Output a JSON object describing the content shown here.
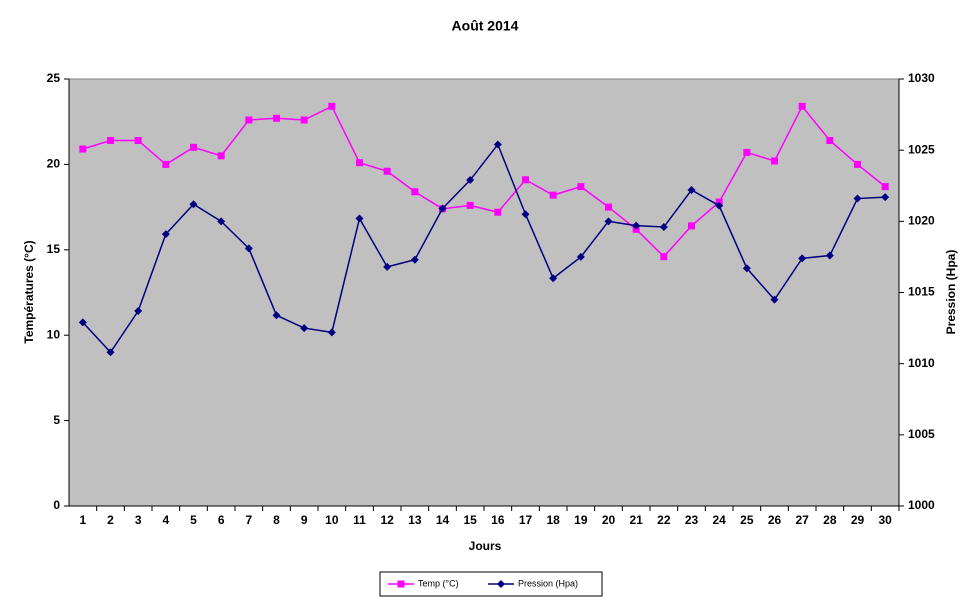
{
  "chart_data": {
    "type": "line",
    "title": "Août 2014",
    "x_label": "Jours",
    "y_label": "Températures (°C)",
    "y2_label": "Pression (Hpa)",
    "categories": [
      "1",
      "2",
      "3",
      "4",
      "5",
      "6",
      "7",
      "8",
      "9",
      "10",
      "11",
      "12",
      "13",
      "14",
      "15",
      "16",
      "17",
      "18",
      "19",
      "20",
      "21",
      "22",
      "23",
      "24",
      "25",
      "26",
      "27",
      "28",
      "29",
      "30"
    ],
    "ylim": [
      0,
      25
    ],
    "yticks": [
      0,
      5,
      10,
      15,
      20,
      25
    ],
    "y2lim": [
      1000,
      1030
    ],
    "y2ticks": [
      1000,
      1005,
      1010,
      1015,
      1020,
      1025,
      1030
    ],
    "grid": false,
    "legend": "bottom",
    "background": "#c0c0c0",
    "series": [
      {
        "name": "Temp (°C)",
        "color": "#ff00ff",
        "marker": "square",
        "values": [
          20.9,
          21.4,
          21.4,
          20.0,
          21.0,
          20.5,
          22.6,
          22.7,
          22.6,
          23.4,
          20.1,
          19.6,
          18.4,
          17.4,
          17.6,
          17.2,
          19.1,
          18.2,
          18.7,
          17.5,
          16.2,
          14.6,
          16.4,
          17.8,
          20.7,
          20.2,
          23.4,
          21.4,
          20.0,
          18.7
        ]
      },
      {
        "name": "Pression (Hpa)",
        "color": "#000080",
        "marker": "diamond",
        "axis": "y2",
        "values": [
          1012.9,
          1010.8,
          1013.7,
          1019.1,
          1021.2,
          1020.0,
          1018.1,
          1013.4,
          1012.5,
          1012.2,
          1020.2,
          1016.8,
          1017.3,
          1020.9,
          1022.9,
          1025.4,
          1020.5,
          1016.0,
          1017.5,
          1020.0,
          1019.7,
          1019.6,
          1022.2,
          1021.1,
          1016.7,
          1014.5,
          1017.4,
          1017.6,
          1021.6,
          1021.7
        ]
      }
    ]
  }
}
